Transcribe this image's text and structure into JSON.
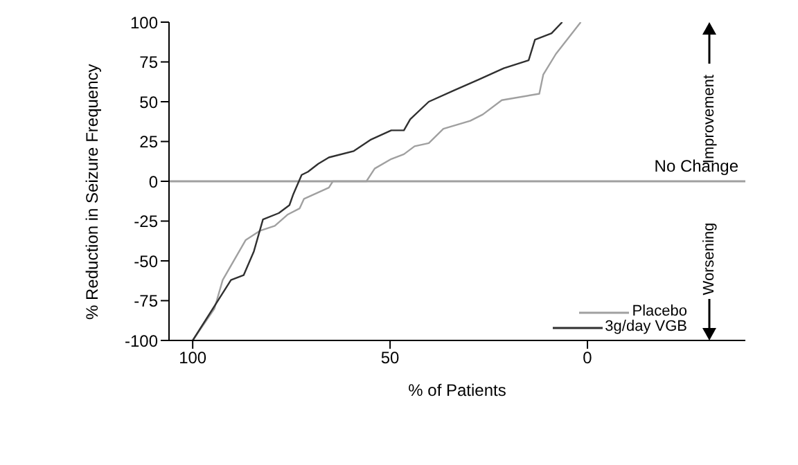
{
  "chart_data": {
    "type": "line",
    "xlabel": "% of Patients",
    "ylabel": "% Reduction in Seizure Frequency",
    "xlim": [
      106,
      -40
    ],
    "xticks": [
      100,
      50,
      0
    ],
    "ylim": [
      -100,
      100
    ],
    "yticks": [
      -100,
      -75,
      -50,
      -25,
      0,
      25,
      50,
      75,
      100
    ],
    "grid": false,
    "legend": "bottom right",
    "marker": "none",
    "line_style": "solid",
    "ref_lines": [
      {
        "axis": "y",
        "value": 0,
        "label": "No Change",
        "color": "#a0a0a0"
      }
    ],
    "annotations": [
      "Improvement",
      "Worsening"
    ],
    "series": [
      {
        "name": "Placebo",
        "color": "#a0a0a0",
        "x": [
          100,
          94.5,
          92.4,
          86.6,
          82.9,
          79.2,
          76,
          72.9,
          71.8,
          65.5,
          64.5,
          56,
          53.9,
          49.7,
          46.5,
          43.8,
          40.2,
          36.5,
          29.7,
          26.5,
          21.7,
          12.2,
          11.2,
          8,
          1.7
        ],
        "values": [
          -100,
          -80,
          -62,
          -37,
          -31,
          -28,
          -21,
          -17,
          -11,
          -4,
          0,
          0,
          8,
          14,
          17,
          22,
          24,
          33,
          38,
          42,
          51,
          55,
          67,
          80,
          100
        ]
      },
      {
        "name": "3g/day VGB",
        "color": "#303030",
        "x": [
          100,
          90.3,
          87.1,
          84.5,
          82.2,
          78.2,
          75.5,
          74.5,
          72.4,
          70.8,
          68.2,
          65.5,
          59.2,
          55,
          49.7,
          46.5,
          44.9,
          40.2,
          33.9,
          27.5,
          21.2,
          14.9,
          13.3,
          9.1,
          6.4
        ],
        "values": [
          -100,
          -62,
          -59,
          -44,
          -24,
          -20,
          -15,
          -8,
          4,
          6,
          11,
          15,
          19,
          26,
          32,
          32,
          39,
          50,
          57,
          64,
          71,
          76,
          89,
          93,
          100
        ]
      }
    ]
  }
}
